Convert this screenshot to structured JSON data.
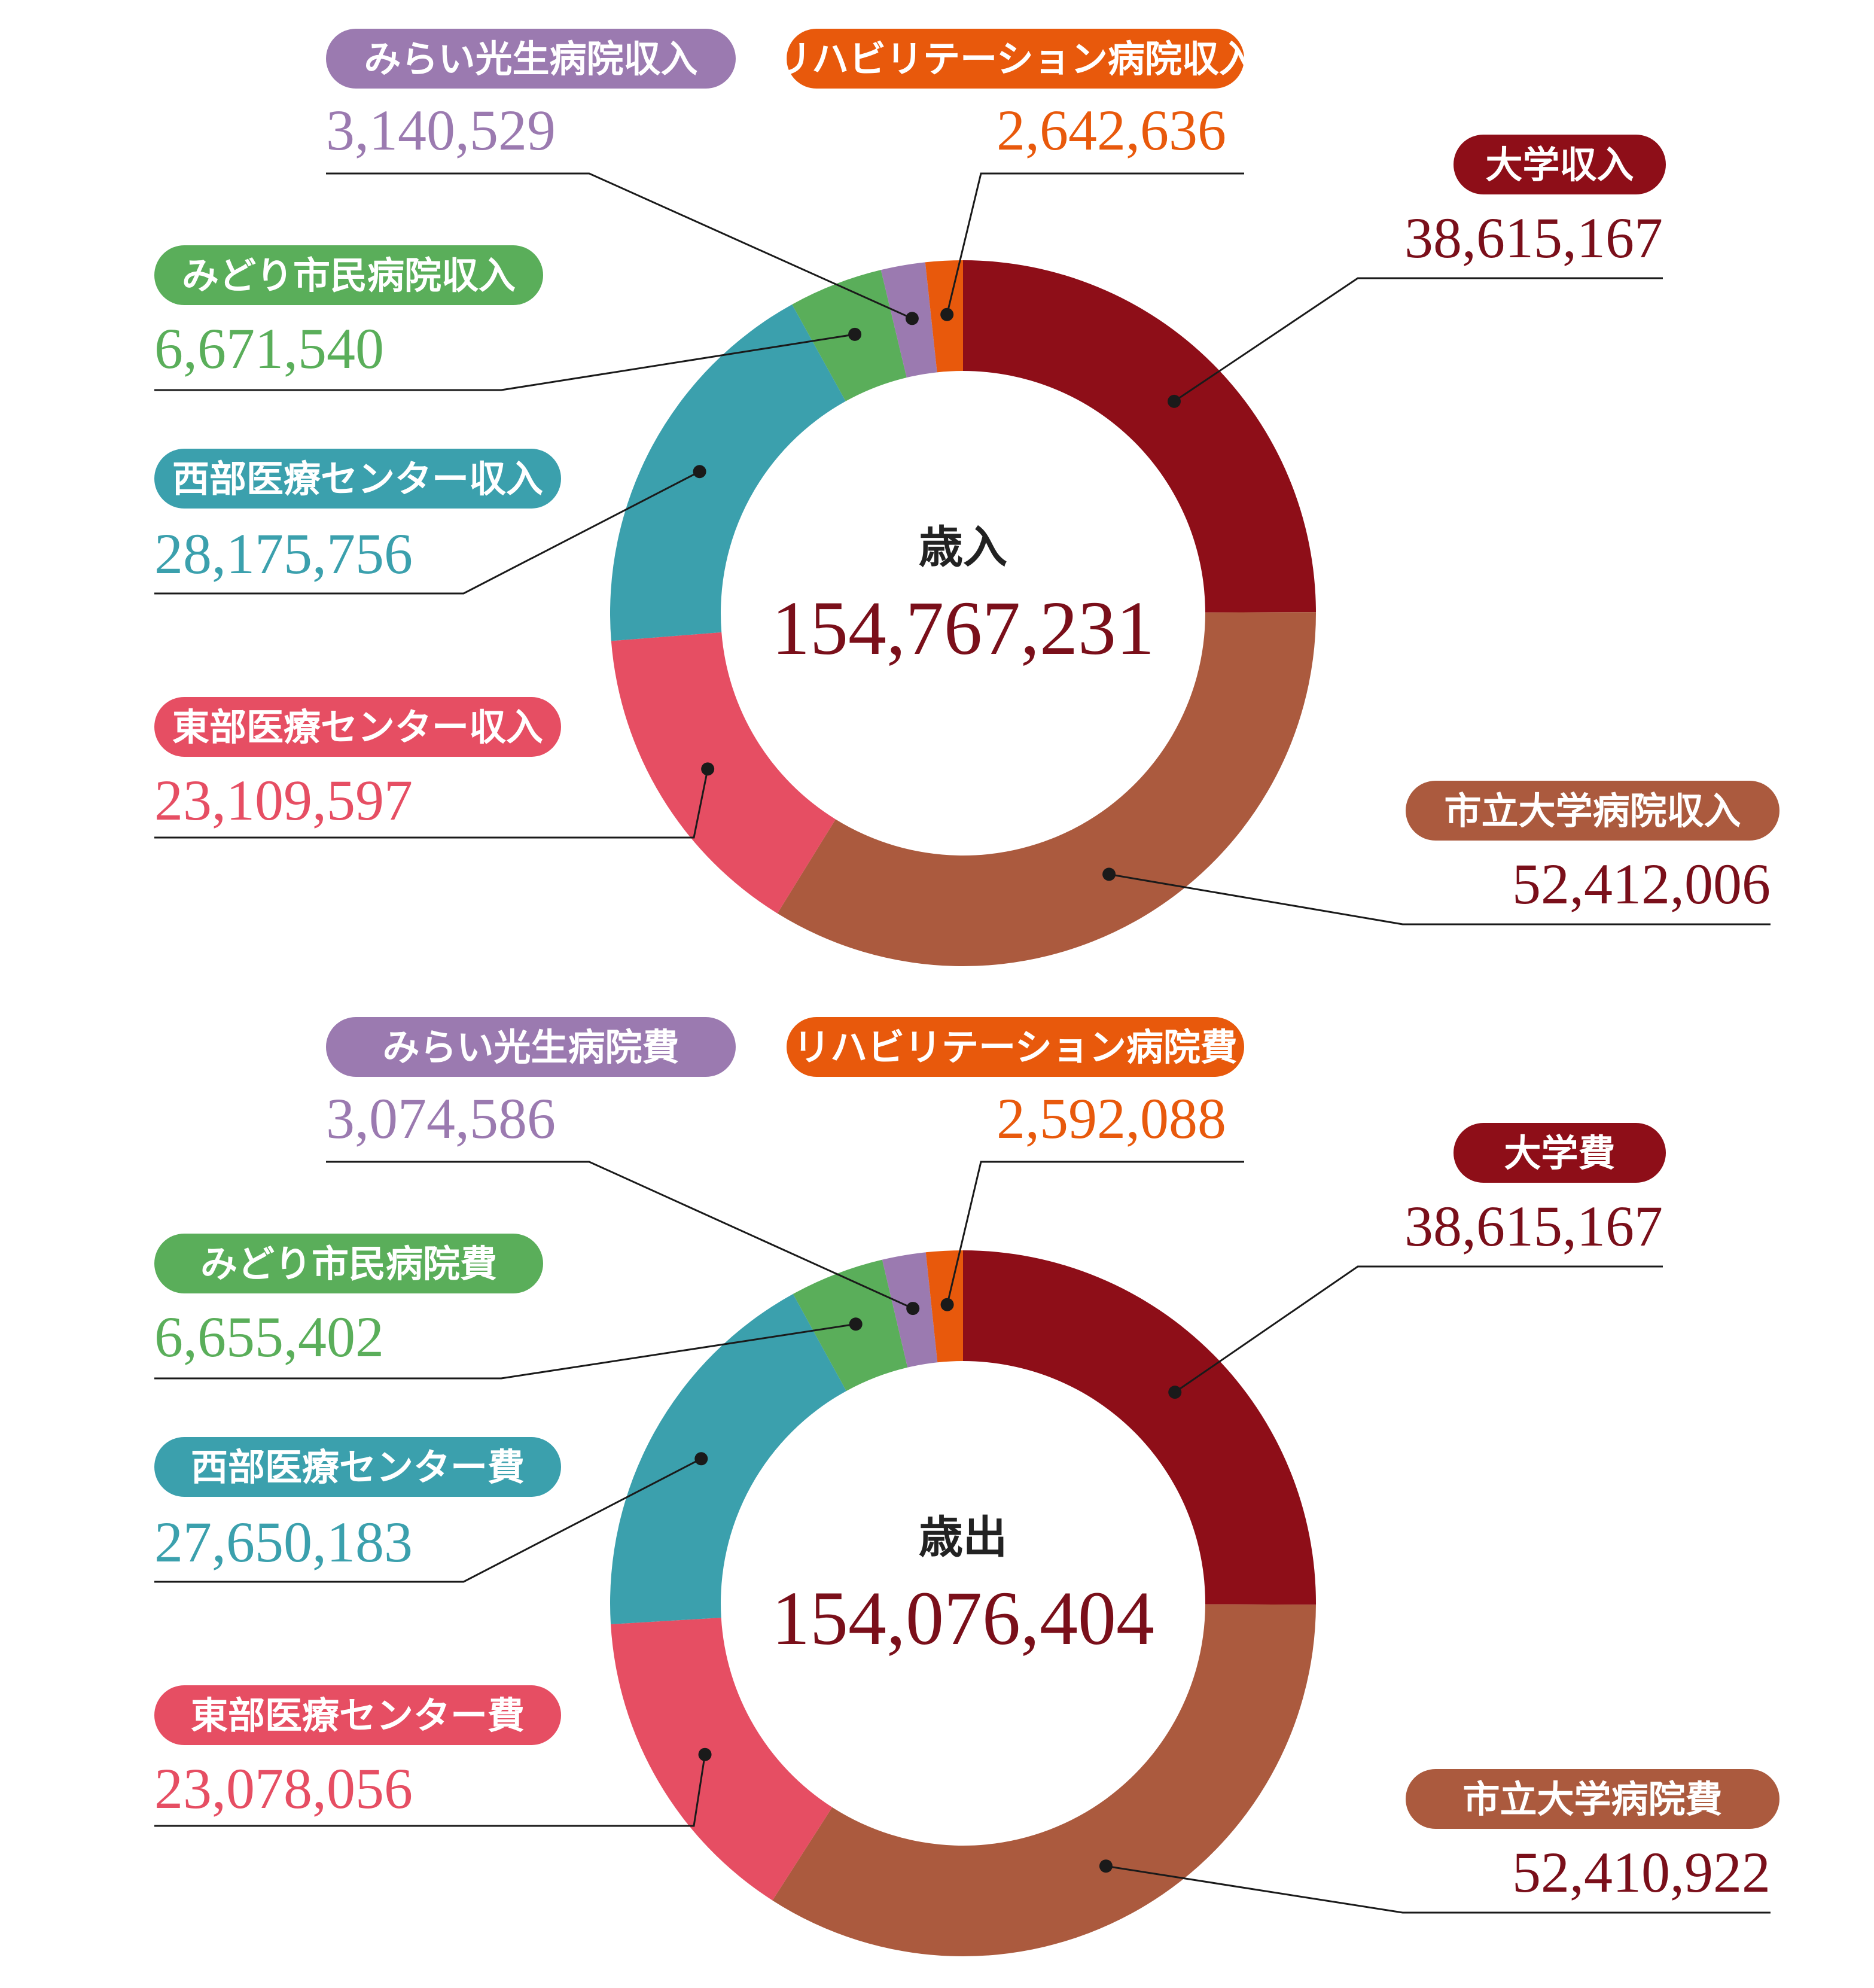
{
  "chart_data": [
    {
      "type": "pie",
      "center_label": "歳入",
      "total": "154,767,231",
      "series": [
        {
          "label": "大学収入",
          "value_text": "38,615,167",
          "value": 38615167,
          "color": "#8e0e18"
        },
        {
          "label": "市立大学病院収入",
          "value_text": "52,412,006",
          "value": 52412006,
          "color": "#ab5a3e"
        },
        {
          "label": "東部医療センター収入",
          "value_text": "23,109,597",
          "value": 23109597,
          "color": "#e64e63"
        },
        {
          "label": "西部医療センター収入",
          "value_text": "28,175,756",
          "value": 28175756,
          "color": "#3ba0ad"
        },
        {
          "label": "みどり市民病院収入",
          "value_text": "6,671,540",
          "value": 6671540,
          "color": "#5aae5a"
        },
        {
          "label": "みらい光生病院収入",
          "value_text": "3,140,529",
          "value": 3140529,
          "color": "#9b7ab0"
        },
        {
          "label": "リハビリテーション病院収入",
          "value_text": "2,642,636",
          "value": 2642636,
          "color": "#e8590c"
        }
      ]
    },
    {
      "type": "pie",
      "center_label": "歳出",
      "total": "154,076,404",
      "series": [
        {
          "label": "大学費",
          "value_text": "38,615,167",
          "value": 38615167,
          "color": "#8e0e18"
        },
        {
          "label": "市立大学病院費",
          "value_text": "52,410,922",
          "value": 52410922,
          "color": "#ab5a3e"
        },
        {
          "label": "東部医療センター費",
          "value_text": "23,078,056",
          "value": 23078056,
          "color": "#e64e63"
        },
        {
          "label": "西部医療センター費",
          "value_text": "27,650,183",
          "value": 27650183,
          "color": "#3ba0ad"
        },
        {
          "label": "みどり市民病院費",
          "value_text": "6,655,402",
          "value": 6655402,
          "color": "#5aae5a"
        },
        {
          "label": "みらい光生病院費",
          "value_text": "3,074,586",
          "value": 3074586,
          "color": "#9b7ab0"
        },
        {
          "label": "リハビリテーション病院費",
          "value_text": "2,592,088",
          "value": 2592088,
          "color": "#e8590c"
        }
      ]
    }
  ]
}
